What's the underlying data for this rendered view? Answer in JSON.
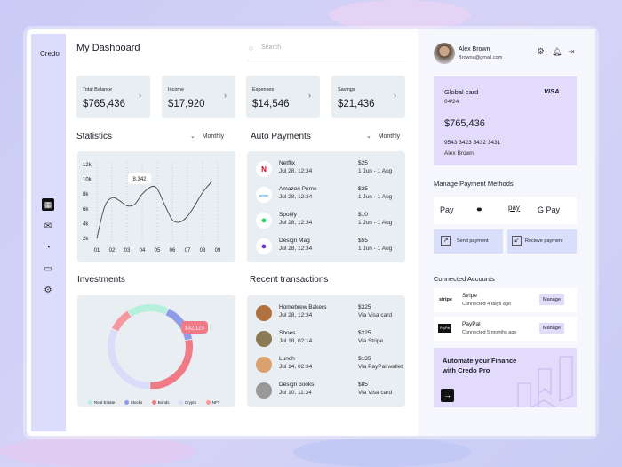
{
  "app": {
    "brand": "Credo",
    "title": "My Dashboard",
    "search_placeholder": "Search"
  },
  "sidebar": {
    "items": [
      {
        "icon": "grid-icon",
        "active": true
      },
      {
        "icon": "mail-icon"
      },
      {
        "icon": "pie-chart-icon"
      },
      {
        "icon": "calendar-icon"
      },
      {
        "icon": "settings-icon"
      }
    ]
  },
  "stats": [
    {
      "label": "Total Balance",
      "value": "$765,436"
    },
    {
      "label": "Income",
      "value": "$17,920"
    },
    {
      "label": "Expenses",
      "value": "$14,546"
    },
    {
      "label": "Savings",
      "value": "$21,436"
    }
  ],
  "statistics": {
    "title": "Statistics",
    "period": "Monthly"
  },
  "chart_data": {
    "type": "line",
    "x_ticks": [
      "01",
      "02",
      "03",
      "04",
      "05",
      "06",
      "07",
      "08",
      "09"
    ],
    "y_ticks": [
      "2k",
      "4k",
      "6k",
      "8k",
      "10k",
      "12k"
    ],
    "ylim": [
      2000,
      12000
    ],
    "grid": "vertical dotted",
    "points": [
      [
        1,
        2000
      ],
      [
        1.5,
        6200
      ],
      [
        2,
        7500
      ],
      [
        2.5,
        7100
      ],
      [
        3,
        6400
      ],
      [
        3.5,
        6600
      ],
      [
        4,
        8000
      ],
      [
        4.6,
        9000
      ],
      [
        5,
        8700
      ],
      [
        5.5,
        6500
      ],
      [
        6,
        4500
      ],
      [
        6.5,
        4200
      ],
      [
        7,
        5000
      ],
      [
        7.5,
        6500
      ],
      [
        8,
        8200
      ],
      [
        8.6,
        9700
      ]
    ],
    "tooltip": "8,342",
    "color": "#444444"
  },
  "auto_payments": {
    "title": "Auto Payments",
    "period": "Monthly",
    "items": [
      {
        "name": "Netflix",
        "date": "Jul 28, 12:34",
        "amount": "$25",
        "period": "1 Jun - 1 Aug",
        "icon": "netflix-icon",
        "color": "#d0021b",
        "glyph": "N"
      },
      {
        "name": "Amazon Prime",
        "date": "Jul 28, 12:34",
        "amount": "$35",
        "period": "1 Jun - 1 Aug",
        "icon": "prime-icon",
        "color": "#4aa3df",
        "glyph": "prime"
      },
      {
        "name": "Spotify",
        "date": "Jul 28, 12:34",
        "amount": "$10",
        "period": "1 Jun - 1 Aug",
        "icon": "spotify-icon",
        "color": "#1ed760",
        "glyph": "●"
      },
      {
        "name": "Design Mag",
        "date": "Jul 28, 12:34",
        "amount": "$55",
        "period": "1 Jun - 1 Aug",
        "icon": "design-mag-icon",
        "color": "#6b2fd0",
        "glyph": "●"
      }
    ]
  },
  "investments": {
    "title": "Investments",
    "tooltip": "$32,123",
    "segments": [
      {
        "name": "Real Estate",
        "share": 16,
        "color": "#b5f0dc"
      },
      {
        "name": "Stocks",
        "share": 15,
        "color": "#8f9ce8"
      },
      {
        "name": "Bonds",
        "share": 28,
        "color": "#f07a86"
      },
      {
        "name": "Crypto",
        "share": 32,
        "color": "#d9ddfa"
      },
      {
        "name": "NFT",
        "share": 9,
        "color": "#f5999f"
      }
    ]
  },
  "transactions": {
    "title": "Recent transactions",
    "items": [
      {
        "name": "Homebrew Bakers",
        "date": "Jul 28, 12:34",
        "amount": "$325",
        "method": "Via Visa card",
        "color": "#b07040"
      },
      {
        "name": "Shoes",
        "date": "Jul 18, 02:14",
        "amount": "$225",
        "method": "Via Stripe",
        "color": "#8a7a55"
      },
      {
        "name": "Lunch",
        "date": "Jul 14, 02:34",
        "amount": "$135",
        "method": "Via PayPal wallet",
        "color": "#d9a070"
      },
      {
        "name": "Design books",
        "date": "Jul 10, 11:34",
        "amount": "$85",
        "method": "Via Visa card",
        "color": "#999999"
      }
    ]
  },
  "user": {
    "name": "Alex Brown",
    "email": "Browna@gmail.com"
  },
  "card": {
    "title": "Global card",
    "brand": "VISA",
    "expiry": "04/24",
    "balance": "$765,436",
    "number": "9543 3423 5432 3431",
    "holder": "Alex Brown",
    "color": "#e3dbfb"
  },
  "payment_methods": {
    "title": "Manage Payment Methods",
    "items": [
      "Pay",
      "●●",
      "pay",
      "G Pay"
    ],
    "send": "Send payment",
    "receive": "Recieve payment"
  },
  "connected": {
    "title": "Connected Accounts",
    "items": [
      {
        "logo": "stripe",
        "name": "Stripe",
        "status": "Connected 4 days ago",
        "action": "Manage"
      },
      {
        "logo": "PayPal",
        "name": "PayPal",
        "status": "Connected 5 months ago",
        "action": "Manage"
      }
    ]
  },
  "promo": {
    "text": "Automate your Finance with Credo Pro",
    "button": "→"
  }
}
